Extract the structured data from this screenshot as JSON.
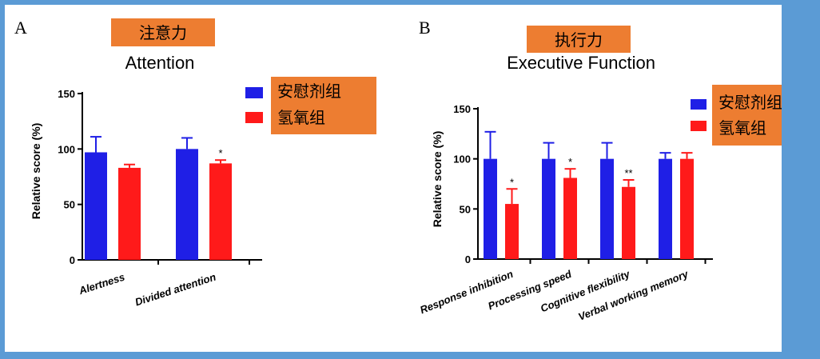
{
  "colors": {
    "placebo": "#1f1fe6",
    "hydrogen": "#ff1a1a",
    "label_box": "#ed7d31",
    "border": "#5b9bd5"
  },
  "chart_data": [
    {
      "panel_letter": "A",
      "cn_title": "注意力",
      "title": "Attention",
      "type": "bar",
      "ylabel": "Relative score (%)",
      "ylim": [
        0,
        150
      ],
      "yticks": [
        0,
        50,
        100,
        150
      ],
      "categories": [
        "Alertness",
        "Divided attention"
      ],
      "legend": [
        "安慰剂组",
        "氢氧组"
      ],
      "series": [
        {
          "name": "安慰剂组",
          "values": [
            97,
            100
          ],
          "errors": [
            14,
            10
          ],
          "color": "#1f1fe6"
        },
        {
          "name": "氢氧组",
          "values": [
            83,
            87
          ],
          "errors": [
            3,
            3
          ],
          "color": "#ff1a1a",
          "significance": [
            "",
            "*"
          ]
        }
      ]
    },
    {
      "panel_letter": "B",
      "cn_title": "执行力",
      "title": "Executive Function",
      "type": "bar",
      "ylabel": "Relative score  (%)",
      "ylim": [
        0,
        150
      ],
      "yticks": [
        0,
        50,
        100,
        150
      ],
      "categories": [
        "Response inhibition",
        "Processing speed",
        "Cognitive flexibility",
        "Verbal working memory"
      ],
      "legend": [
        "安慰剂组",
        "氢氧组"
      ],
      "series": [
        {
          "name": "安慰剂组",
          "values": [
            100,
            100,
            100,
            100
          ],
          "errors": [
            27,
            16,
            16,
            6
          ],
          "color": "#1f1fe6"
        },
        {
          "name": "氢氧组",
          "values": [
            55,
            81,
            72,
            100
          ],
          "errors": [
            15,
            9,
            7,
            6
          ],
          "color": "#ff1a1a",
          "significance": [
            "*",
            "*",
            "**",
            ""
          ]
        }
      ]
    }
  ]
}
